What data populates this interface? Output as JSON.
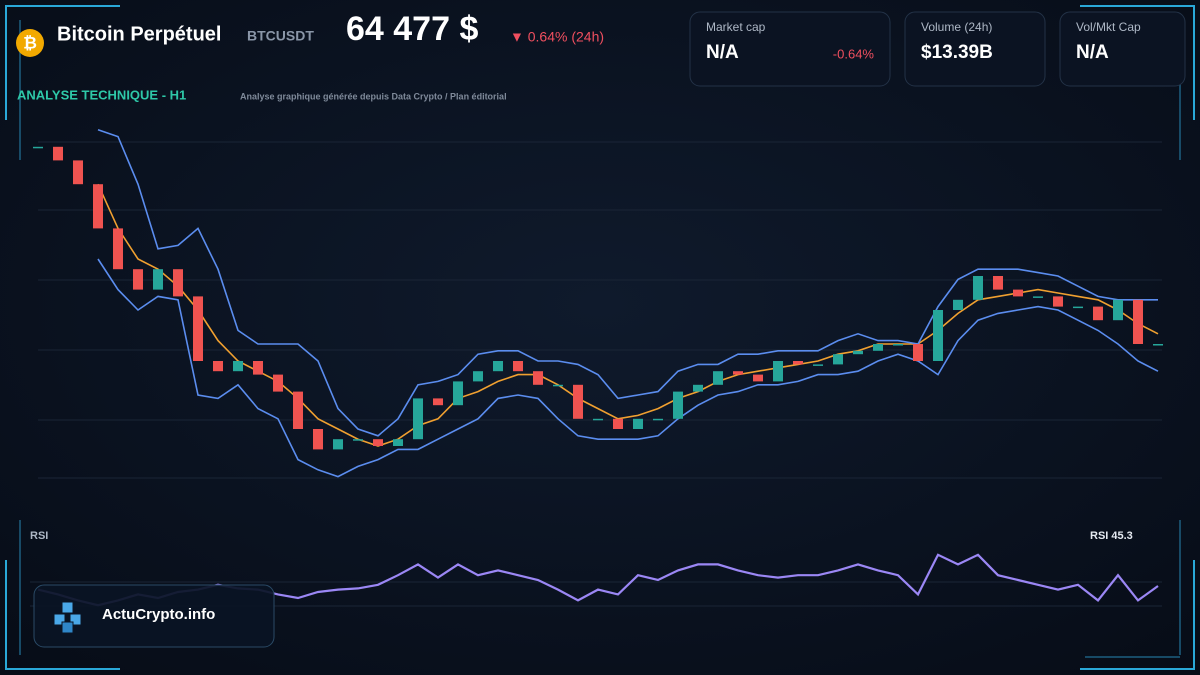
{
  "header": {
    "icon": "₿",
    "name": "Bitcoin Perpétuel",
    "ticker": "BTCUSDT",
    "price": "64 477 $",
    "change": "▼ 0.64% (24h)"
  },
  "cards": [
    {
      "label": "Market cap",
      "value": "N/A",
      "change": "-0.64%"
    },
    {
      "label": "Volume (24h)",
      "value": "$13.39B"
    },
    {
      "label": "Vol/Mkt Cap",
      "value": "N/A"
    }
  ],
  "brand": "ActuCrypto.info",
  "chart_data": [
    {
      "type": "candlestick",
      "title": "ANALYSE TECHNIQUE - H1",
      "subtitle": "Analyse graphique générée depuis Data Crypto / Plan éditorial",
      "ylim": [
        0,
        100
      ],
      "series": [
        {
          "up_color": "#26a69a",
          "down_color": "#ef5350",
          "values": [
            98,
            94,
            87,
            74,
            62,
            56,
            62,
            54,
            35,
            32,
            35,
            31,
            26,
            15,
            9,
            12,
            12,
            10,
            12,
            24,
            22,
            29,
            32,
            35,
            32,
            28,
            28,
            18,
            18,
            15,
            18,
            18,
            26,
            28,
            32,
            31,
            29,
            35,
            34,
            34,
            37,
            38,
            40,
            40,
            35,
            50,
            53,
            60,
            56,
            54,
            54,
            51,
            51,
            47,
            53,
            40,
            40
          ]
        },
        {
          "color": "#f0a030",
          "values": [
            null,
            null,
            null,
            87,
            74,
            65,
            62,
            57,
            50,
            41,
            35,
            32,
            29,
            24,
            18,
            15,
            12,
            10,
            12,
            16,
            18,
            24,
            26,
            29,
            31,
            31,
            28,
            24,
            21,
            18,
            19,
            21,
            24,
            26,
            29,
            31,
            32,
            33,
            34,
            35,
            37,
            38,
            40,
            40,
            40,
            44,
            49,
            53,
            54,
            55,
            56,
            55,
            54,
            53,
            50,
            46,
            43
          ]
        },
        {
          "color": "#5b8def",
          "values": [
            null,
            null,
            null,
            103,
            101,
            87,
            68,
            69,
            74,
            62,
            44,
            40,
            40,
            40,
            35,
            21,
            15,
            13,
            18,
            28,
            29,
            31,
            37,
            38,
            38,
            35,
            35,
            34,
            31,
            24,
            25,
            26,
            32,
            34,
            34,
            37,
            37,
            38,
            38,
            38,
            41,
            43,
            41,
            41,
            40,
            51,
            59,
            62,
            62,
            62,
            61,
            60,
            57,
            54,
            53,
            53,
            53
          ]
        },
        {
          "color": "#5b8def",
          "values": [
            null,
            null,
            null,
            65,
            56,
            50,
            54,
            53,
            25,
            24,
            28,
            21,
            18,
            6,
            3,
            1,
            4,
            6,
            9,
            9,
            12,
            15,
            18,
            24,
            25,
            24,
            18,
            13,
            12,
            12,
            12,
            13,
            18,
            22,
            25,
            26,
            28,
            28,
            29,
            31,
            31,
            32,
            35,
            37,
            35,
            31,
            41,
            47,
            49,
            50,
            51,
            50,
            47,
            44,
            40,
            35,
            32
          ]
        }
      ]
    },
    {
      "type": "line",
      "title": "RSI",
      "annotation": "RSI 45.3",
      "ylim": [
        0,
        100
      ],
      "series": [
        {
          "color": "#9b87f5",
          "values": [
            42,
            38,
            33,
            29,
            33,
            38,
            35,
            40,
            42,
            46,
            43,
            42,
            38,
            35,
            40,
            42,
            43,
            46,
            54,
            63,
            52,
            63,
            54,
            58,
            54,
            50,
            42,
            33,
            42,
            38,
            54,
            50,
            58,
            63,
            63,
            58,
            54,
            52,
            54,
            54,
            58,
            63,
            58,
            54,
            38,
            71,
            63,
            71,
            54,
            50,
            46,
            42,
            46,
            33,
            54,
            33,
            45
          ]
        }
      ]
    }
  ]
}
